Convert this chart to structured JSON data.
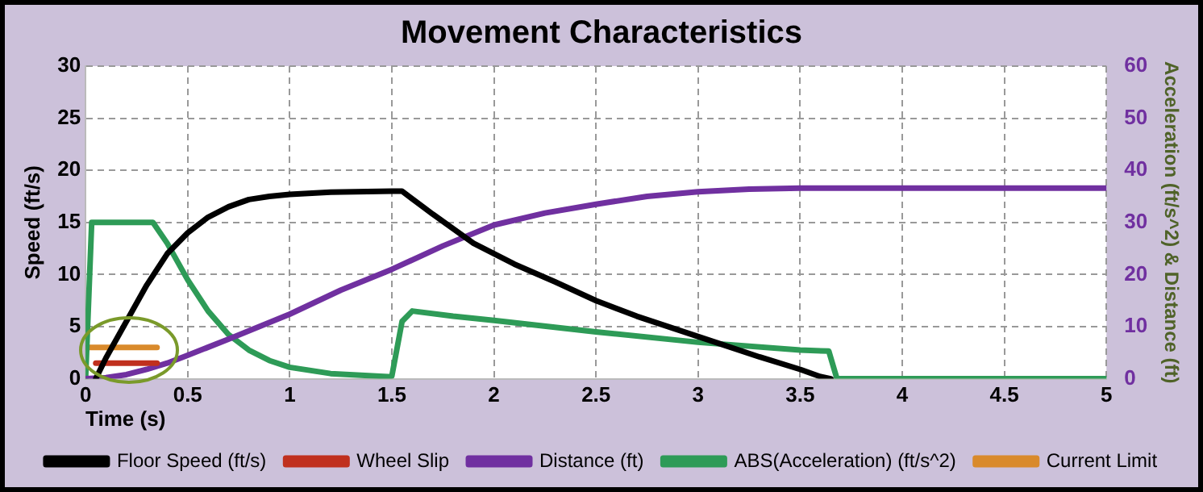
{
  "chart_data": {
    "type": "line",
    "title": "Movement Characteristics",
    "xlabel": "Time (s)",
    "ylabel": "Speed (ft/s)",
    "y2label": "Acceleration (ft/s^2) & Distance (ft)",
    "xlim": [
      0,
      5
    ],
    "xticks": [
      0,
      0.5,
      1,
      1.5,
      2,
      2.5,
      3,
      3.5,
      4,
      4.5,
      5
    ],
    "ylim": [
      0,
      30
    ],
    "yticks": [
      0,
      5,
      10,
      15,
      20,
      25,
      30
    ],
    "y2lim": [
      0,
      60
    ],
    "y2ticks": [
      0,
      10,
      20,
      30,
      40,
      50,
      60
    ],
    "grid": true,
    "legend": "bottom",
    "marker": "none",
    "line_style": "solid",
    "series": [
      {
        "name": "Floor Speed (ft/s)",
        "color": "#000000",
        "x": [
          0.05,
          0.1,
          0.2,
          0.3,
          0.4,
          0.5,
          0.6,
          0.7,
          0.8,
          0.9,
          1.0,
          1.2,
          1.5,
          1.55,
          1.7,
          1.9,
          2.1,
          2.3,
          2.5,
          2.7,
          2.9,
          3.1,
          3.3,
          3.5,
          3.6,
          3.65
        ],
        "values": [
          0,
          2,
          5.5,
          9,
          12,
          14,
          15.5,
          16.5,
          17.2,
          17.5,
          17.7,
          17.9,
          18,
          18,
          15.8,
          13,
          11,
          9.3,
          7.5,
          6,
          4.7,
          3.4,
          2.1,
          0.9,
          0.2,
          0
        ]
      },
      {
        "name": "Wheel Slip",
        "color": "#c0301e",
        "x": [
          0.05,
          0.35
        ],
        "values": [
          1.5,
          1.5
        ]
      },
      {
        "name": "Distance (ft)",
        "color": "#7030a0",
        "axis": "y2",
        "x": [
          0,
          0.1,
          0.2,
          0.3,
          0.4,
          0.5,
          0.7,
          1.0,
          1.25,
          1.5,
          1.75,
          2.0,
          2.25,
          2.5,
          2.75,
          3.0,
          3.25,
          3.5,
          5
        ],
        "values": [
          0,
          0.2,
          0.8,
          1.8,
          3,
          4.5,
          7.6,
          12.4,
          17,
          21,
          25.5,
          29.5,
          31.8,
          33.5,
          35,
          35.9,
          36.4,
          36.6,
          36.6
        ]
      },
      {
        "name": "ABS(Acceleration) (ft/s^2)",
        "color": "#2e9b57",
        "axis": "y2",
        "x": [
          0,
          0.03,
          0.33,
          0.4,
          0.5,
          0.6,
          0.7,
          0.8,
          0.9,
          1.0,
          1.2,
          1.48,
          1.5,
          1.55,
          1.6,
          1.8,
          2.0,
          2.5,
          3.0,
          3.5,
          3.64,
          3.68,
          5
        ],
        "values": [
          0,
          30,
          30,
          26,
          19,
          13,
          8.5,
          5.5,
          3.5,
          2.2,
          1,
          0.4,
          0.5,
          11,
          13,
          12,
          11.2,
          9,
          7,
          5.5,
          5.3,
          0,
          0
        ]
      },
      {
        "name": "Current Limit",
        "color": "#d98a2b",
        "x": [
          0,
          0.35
        ],
        "values": [
          3,
          3
        ]
      }
    ]
  }
}
